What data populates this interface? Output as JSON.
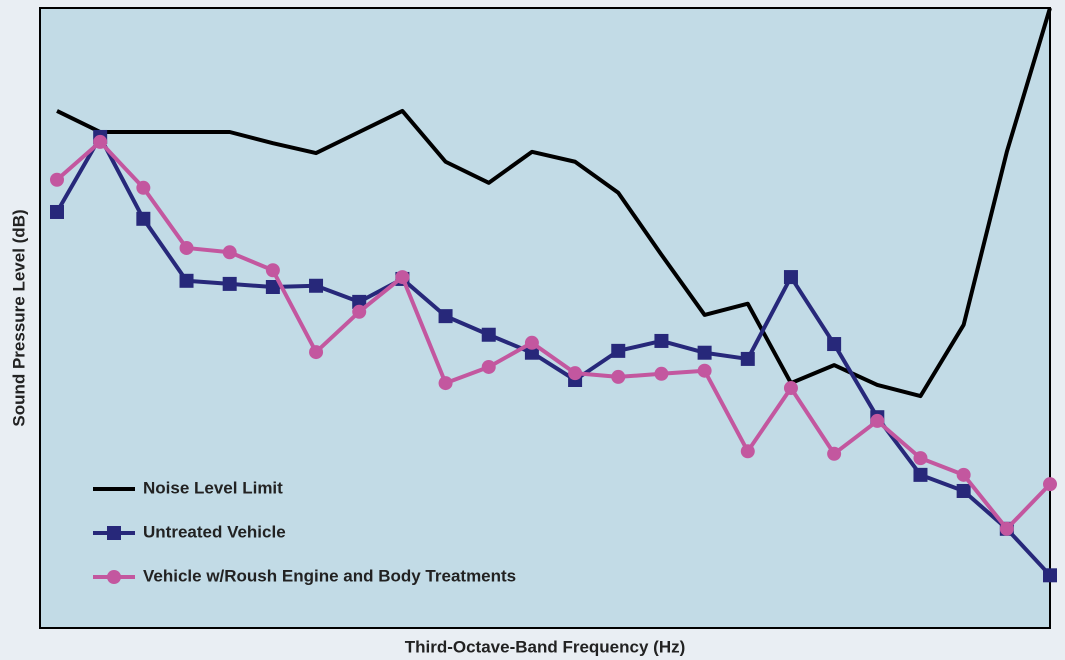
{
  "chart_data": {
    "type": "line",
    "x_label": "Third-Octave-Band Frequency (Hz)",
    "y_label": "Sound Pressure Level (dB)",
    "categories": [
      null,
      null,
      null,
      null,
      null,
      null,
      null,
      null,
      null,
      null,
      null,
      null,
      null,
      null,
      null,
      null,
      null,
      null,
      null,
      null,
      null,
      null,
      null,
      null
    ],
    "ylim": [
      0,
      100
    ],
    "legend": "lower-left",
    "series": [
      {
        "name": "Noise Level Limit",
        "color": "#000000",
        "marker": "none",
        "values": [
          83.4,
          80,
          80,
          80,
          80,
          78.2,
          76.6,
          80,
          83.4,
          75.2,
          71.8,
          76.8,
          75.2,
          70.2,
          60.2,
          50.5,
          52.3,
          39.5,
          42.4,
          39.2,
          37.4,
          48.9,
          76.8,
          100
        ]
      },
      {
        "name": "Untreated Vehicle",
        "color": "#27287a",
        "marker": "square",
        "values": [
          67.1,
          79.2,
          66,
          56,
          55.5,
          55,
          55.2,
          52.6,
          56.3,
          50.3,
          47.3,
          44.4,
          40,
          44.7,
          46.3,
          44.4,
          43.4,
          56.6,
          45.8,
          34,
          24.7,
          22.1,
          16,
          8.5
        ]
      },
      {
        "name": "Vehicle w/Roush Engine and Body Treatments",
        "color": "#c3579f",
        "marker": "circle",
        "values": [
          72.3,
          78.4,
          71,
          61.3,
          60.6,
          57.7,
          44.5,
          51,
          56.6,
          39.5,
          42.1,
          46,
          41.1,
          40.5,
          41,
          41.5,
          28.5,
          38.7,
          28.1,
          33.4,
          27.4,
          24.7,
          16,
          23.2
        ]
      }
    ]
  }
}
